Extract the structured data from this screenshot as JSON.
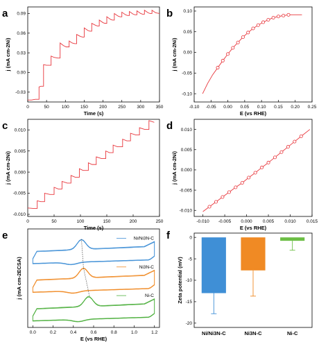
{
  "chart_data": [
    {
      "panel": "a",
      "type": "line",
      "xlabel": "Time (s)",
      "ylabel": "j (mA cm-2Ni)",
      "xlim": [
        0,
        350
      ],
      "ylim": [
        -0.045,
        0.1
      ],
      "xticks": [
        "0",
        "50",
        "100",
        "150",
        "200",
        "250",
        "300",
        "350"
      ],
      "xtick_values": [
        0,
        50,
        100,
        150,
        200,
        250,
        300,
        350
      ],
      "yticks": [
        "-0.03",
        "0.00",
        "0.03",
        "0.06",
        "0.09"
      ],
      "ytick_values": [
        -0.03,
        0,
        0.03,
        0.06,
        0.09
      ],
      "color": "#e8353b",
      "series": [
        {
          "name": "",
          "x": [
            0,
            10,
            20,
            30,
            30,
            35,
            40,
            42,
            42,
            50,
            60,
            62,
            62,
            70,
            80,
            86,
            86,
            95,
            102,
            110,
            110,
            118,
            125,
            130,
            130,
            140,
            146,
            150,
            150,
            160,
            165,
            170,
            170,
            180,
            185,
            190,
            190,
            200,
            205,
            210,
            210,
            220,
            225,
            230,
            230,
            240,
            245,
            250,
            250,
            260,
            265,
            270,
            270,
            280,
            285,
            290,
            290,
            300,
            305,
            310,
            310,
            320,
            325,
            330,
            330,
            340,
            350
          ],
          "y": [
            -0.042,
            -0.042,
            -0.041,
            -0.041,
            -0.022,
            -0.021,
            -0.021,
            -0.021,
            0.012,
            0.011,
            0.011,
            0.011,
            0.025,
            0.023,
            0.022,
            0.022,
            0.045,
            0.041,
            0.039,
            0.039,
            0.048,
            0.045,
            0.044,
            0.044,
            0.058,
            0.055,
            0.054,
            0.054,
            0.068,
            0.064,
            0.063,
            0.063,
            0.075,
            0.072,
            0.071,
            0.071,
            0.08,
            0.076,
            0.075,
            0.075,
            0.085,
            0.081,
            0.08,
            0.08,
            0.09,
            0.086,
            0.085,
            0.085,
            0.092,
            0.088,
            0.087,
            0.087,
            0.093,
            0.089,
            0.088,
            0.088,
            0.094,
            0.09,
            0.089,
            0.089,
            0.095,
            0.091,
            0.09,
            0.09,
            0.095,
            0.091,
            0.09
          ]
        }
      ]
    },
    {
      "panel": "b",
      "type": "line",
      "xlabel": "E (vs RHE)",
      "ylabel": "j (mA cm-2Ni)",
      "xlim": [
        -0.1,
        0.25
      ],
      "ylim": [
        -0.12,
        0.11
      ],
      "xticks": [
        "-0.10",
        "-0.05",
        "0.00",
        "0.05",
        "0.10",
        "0.15",
        "0.20",
        "0.25"
      ],
      "xtick_values": [
        -0.1,
        -0.05,
        0,
        0.05,
        0.1,
        0.15,
        0.2,
        0.25
      ],
      "yticks": [
        "-0.10",
        "-0.05",
        "0.00",
        "0.05",
        "0.10"
      ],
      "ytick_values": [
        -0.1,
        -0.05,
        0,
        0.05,
        0.1
      ],
      "color": "#e8353b",
      "series": [
        {
          "name": "",
          "x": [
            -0.075,
            -0.06,
            -0.045,
            -0.03,
            -0.015,
            0,
            0.015,
            0.03,
            0.045,
            0.06,
            0.075,
            0.09,
            0.105,
            0.12,
            0.135,
            0.15,
            0.165,
            0.18,
            0.195,
            0.21,
            0.22
          ],
          "y": [
            -0.1,
            -0.075,
            -0.054,
            -0.037,
            -0.02,
            -0.004,
            0.011,
            0.024,
            0.037,
            0.048,
            0.058,
            0.066,
            0.073,
            0.079,
            0.084,
            0.087,
            0.089,
            0.091,
            0.091,
            0.091,
            0.091
          ]
        }
      ],
      "markers": {
        "x": [
          -0.03,
          -0.015,
          0,
          0.015,
          0.03,
          0.045,
          0.06,
          0.075,
          0.09,
          0.105,
          0.12,
          0.135,
          0.15,
          0.165,
          0.18
        ],
        "y": [
          -0.037,
          -0.02,
          -0.004,
          0.011,
          0.024,
          0.037,
          0.048,
          0.058,
          0.066,
          0.073,
          0.079,
          0.084,
          0.087,
          0.089,
          0.091
        ]
      }
    },
    {
      "panel": "c",
      "type": "line",
      "xlabel": "Time (s)",
      "ylabel": "j (mA cm-2Ni)",
      "xlim": [
        0,
        250
      ],
      "ylim": [
        -0.0105,
        0.0125
      ],
      "xticks": [
        "0",
        "50",
        "100",
        "150",
        "200",
        "250"
      ],
      "xtick_values": [
        0,
        50,
        100,
        150,
        200,
        250
      ],
      "yticks": [
        "-0.010",
        "-0.005",
        "0.000",
        "0.005",
        "0.010"
      ],
      "ytick_values": [
        -0.01,
        -0.005,
        0,
        0.005,
        0.01
      ],
      "color": "#e8353b",
      "series": [
        {
          "name": "",
          "x": [
            0,
            10,
            18,
            18,
            25,
            32,
            32,
            42,
            50,
            50,
            58,
            65,
            65,
            75,
            82,
            82,
            90,
            98,
            98,
            105,
            115,
            115,
            122,
            130,
            130,
            140,
            148,
            148,
            155,
            162,
            162,
            170,
            180,
            180,
            188,
            195,
            195,
            205,
            212,
            212,
            222,
            230,
            230,
            240
          ],
          "y": [
            -0.0085,
            -0.0086,
            -0.0086,
            -0.0068,
            -0.007,
            -0.007,
            -0.005,
            -0.0053,
            -0.0053,
            -0.0036,
            -0.004,
            -0.004,
            -0.0022,
            -0.0026,
            -0.0026,
            -0.0008,
            -0.0012,
            -0.0012,
            0.0008,
            0.0004,
            0.0004,
            0.0022,
            0.0018,
            0.0018,
            0.0036,
            0.0032,
            0.0032,
            0.005,
            0.0046,
            0.0046,
            0.0064,
            0.006,
            0.006,
            0.0078,
            0.0074,
            0.0074,
            0.0092,
            0.0088,
            0.0088,
            0.0105,
            0.0101,
            0.0101,
            0.0122,
            0.0118
          ]
        }
      ]
    },
    {
      "panel": "d",
      "type": "line",
      "xlabel": "E (vs RHE)",
      "ylabel": "j (mA cm-2Ni)",
      "xlim": [
        -0.012,
        0.015
      ],
      "ylim": [
        -0.0115,
        0.0125
      ],
      "xticks": [
        "-0.010",
        "-0.005",
        "0.000",
        "0.005",
        "0.010",
        "0.015"
      ],
      "xtick_values": [
        -0.01,
        -0.005,
        0,
        0.005,
        0.01,
        0.015
      ],
      "yticks": [
        "-0.010",
        "-0.005",
        "0.000",
        "0.005",
        "0.010"
      ],
      "ytick_values": [
        -0.01,
        -0.005,
        0,
        0.005,
        0.01
      ],
      "color": "#e8353b",
      "series": [
        {
          "name": "",
          "x": [
            -0.01,
            -0.0085,
            -0.007,
            -0.0055,
            -0.004,
            -0.0025,
            -0.001,
            0.0005,
            0.002,
            0.0035,
            0.005,
            0.0065,
            0.008,
            0.0095,
            0.011,
            0.0125,
            0.0145
          ],
          "y": [
            -0.0103,
            -0.0091,
            -0.0079,
            -0.0067,
            -0.0055,
            -0.0043,
            -0.0032,
            -0.0019,
            -0.0007,
            0.0006,
            0.0018,
            0.0031,
            0.0044,
            0.0057,
            0.007,
            0.0083,
            0.01
          ]
        }
      ],
      "markers": {
        "x": [
          -0.0085,
          -0.007,
          -0.0055,
          -0.004,
          -0.0025,
          -0.001,
          0.0005,
          0.002,
          0.0035,
          0.005,
          0.0065,
          0.008,
          0.0095,
          0.011,
          0.0125
        ],
        "y": [
          -0.0091,
          -0.0079,
          -0.0067,
          -0.0055,
          -0.0043,
          -0.0032,
          -0.0019,
          -0.0007,
          0.0006,
          0.0018,
          0.0031,
          0.0044,
          0.0057,
          0.007,
          0.0083
        ]
      }
    },
    {
      "panel": "e",
      "type": "line",
      "xlabel": "E (vs RHE)",
      "ylabel": "j (mA cm-2ECSA)",
      "xlim": [
        -0.05,
        1.25
      ],
      "xticks": [
        "0.0",
        "0.2",
        "0.4",
        "0.6",
        "0.8",
        "1.0",
        "1.2"
      ],
      "xtick_values": [
        0,
        0.2,
        0.4,
        0.6,
        0.8,
        1.0,
        1.2
      ],
      "series": [
        {
          "name": "Ni/Ni3N-C",
          "color": "#3f8fd6",
          "offset": 3.2,
          "peak": 0.48
        },
        {
          "name": "Ni3N-C",
          "color": "#f08a24",
          "offset": 1.6,
          "peak": 0.5
        },
        {
          "name": "Ni-C",
          "color": "#4caf3c",
          "offset": 0.0,
          "peak": 0.55
        }
      ]
    },
    {
      "panel": "f",
      "type": "bar",
      "ylabel": "Zeta potential (mV)",
      "categories": [
        "Ni/Ni3N-C",
        "Ni3N-C",
        "Ni-C"
      ],
      "values": [
        -13.0,
        -7.7,
        -0.8
      ],
      "errors": [
        4.8,
        6.0,
        2.2
      ],
      "colors": [
        "#3f8fd6",
        "#f08a24",
        "#6cbe45"
      ],
      "ylim": [
        -21,
        1
      ],
      "yticks": [
        "0",
        "-5",
        "-10",
        "-15",
        "-20"
      ],
      "ytick_values": [
        0,
        -5,
        -10,
        -15,
        -20
      ]
    }
  ]
}
